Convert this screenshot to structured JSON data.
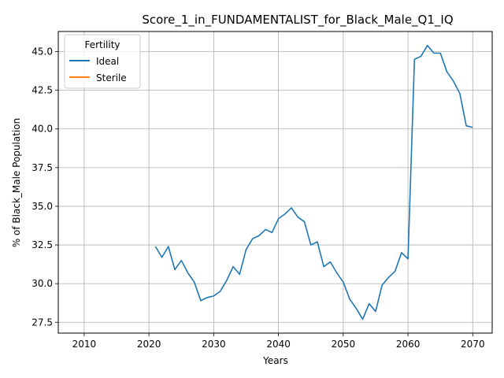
{
  "chart_data": {
    "type": "line",
    "title": "Score_1_in_FUNDAMENTALIST_for_Black_Male_Q1_IQ",
    "xlabel": "Years",
    "ylabel": "% of Black_Male Population",
    "xlim": [
      2006,
      2073
    ],
    "ylim": [
      26.8,
      46.3
    ],
    "xticks": [
      2010,
      2020,
      2030,
      2040,
      2050,
      2060,
      2070
    ],
    "yticks": [
      27.5,
      30.0,
      32.5,
      35.0,
      37.5,
      40.0,
      42.5,
      45.0
    ],
    "ytick_labels": [
      "27.5",
      "30.0",
      "32.5",
      "35.0",
      "37.5",
      "40.0",
      "42.5",
      "45.0"
    ],
    "grid": true,
    "legend": {
      "title": "Fertility",
      "placement": "top-left"
    },
    "series": [
      {
        "name": "Ideal",
        "color": "#1f77b4",
        "x": [
          2021,
          2022,
          2023,
          2024,
          2025,
          2026,
          2027,
          2028,
          2029,
          2030,
          2031,
          2032,
          2033,
          2034,
          2035,
          2036,
          2037,
          2038,
          2039,
          2040,
          2041,
          2042,
          2043,
          2044,
          2045,
          2046,
          2047,
          2048,
          2049,
          2050,
          2051,
          2052,
          2053,
          2054,
          2055,
          2056,
          2057,
          2058,
          2059,
          2060,
          2061,
          2062,
          2063,
          2064,
          2065,
          2066,
          2067,
          2068,
          2069,
          2070
        ],
        "values": [
          32.4,
          31.7,
          32.4,
          30.9,
          31.5,
          30.7,
          30.1,
          28.9,
          29.1,
          29.2,
          29.5,
          30.2,
          31.1,
          30.6,
          32.2,
          32.9,
          33.1,
          33.5,
          33.3,
          34.2,
          34.5,
          34.9,
          34.3,
          34.0,
          32.5,
          32.7,
          31.1,
          31.4,
          30.7,
          30.1,
          29.0,
          28.4,
          27.7,
          28.7,
          28.2,
          29.9,
          30.4,
          30.8,
          32.0,
          31.6,
          44.5,
          44.7,
          45.4,
          44.9,
          44.9,
          43.7,
          43.1,
          42.3,
          40.2,
          40.1
        ]
      },
      {
        "name": "Sterile",
        "color": "#ff7f0e",
        "x": [],
        "values": []
      }
    ]
  }
}
